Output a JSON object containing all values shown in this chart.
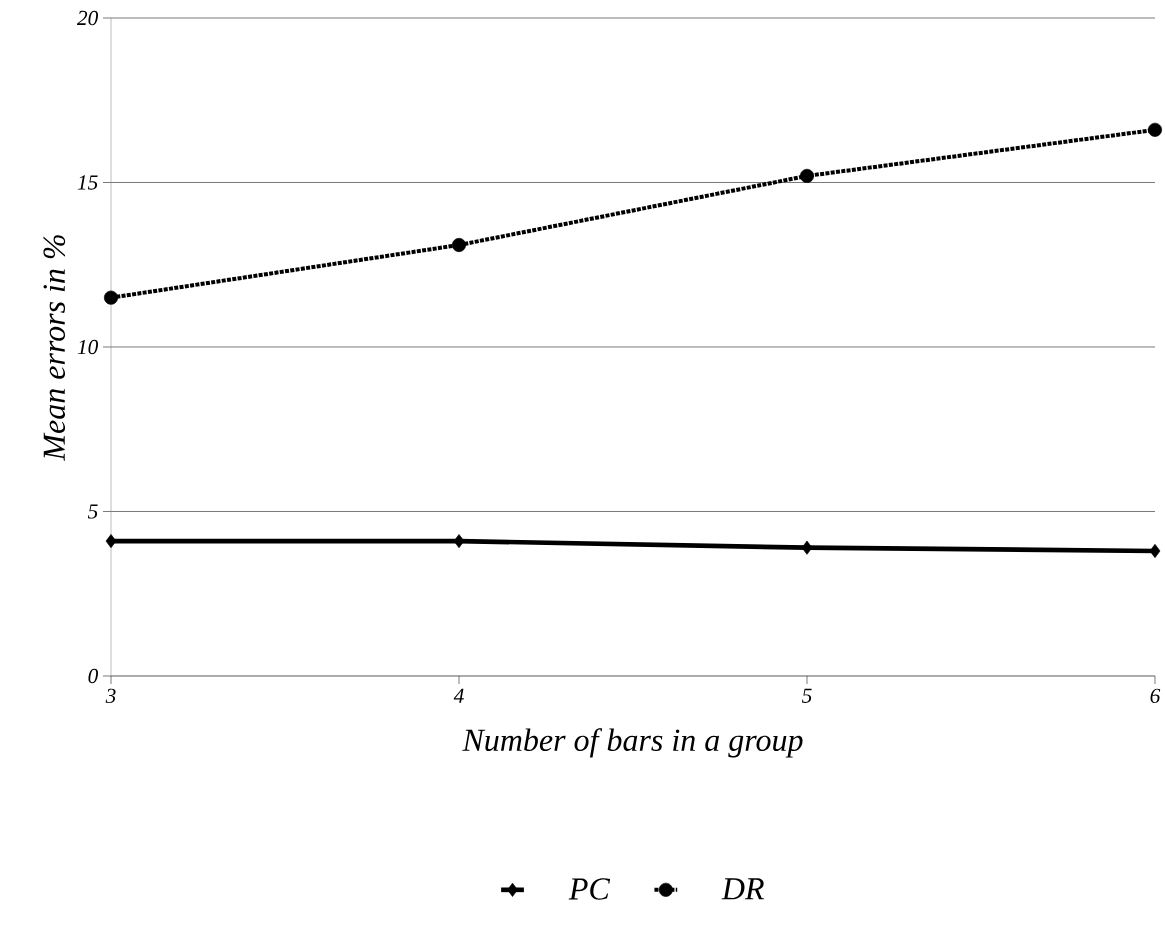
{
  "chart_data": {
    "type": "line",
    "xlabel": "Number of bars in a group",
    "ylabel": "Mean errors in %",
    "x": [
      3,
      4,
      5,
      6
    ],
    "xlim": [
      3,
      6
    ],
    "xticks": [
      3,
      4,
      5,
      6
    ],
    "ylim": [
      0,
      20
    ],
    "yticks": [
      0,
      5,
      10,
      15,
      20
    ],
    "grid": "y",
    "legend": "bottom",
    "series": [
      {
        "name": "PC",
        "color": "#000000",
        "marker": "diamond",
        "line_style": "solid",
        "values": [
          4.1,
          4.1,
          3.9,
          3.8
        ]
      },
      {
        "name": "DR",
        "color": "#000000",
        "marker": "circle",
        "line_style": "dotted",
        "values": [
          11.5,
          13.1,
          15.2,
          16.6
        ]
      }
    ]
  }
}
